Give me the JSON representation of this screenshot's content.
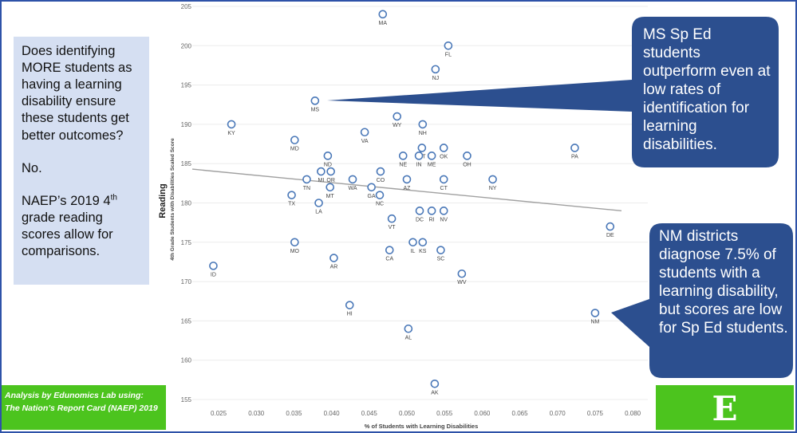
{
  "sidebar": {
    "question": "Does identifying MORE students as having a learning disability ensure these students get better outcomes?",
    "answer": "No.",
    "note_part1": "NAEP’s 2019 4",
    "note_sup": "th",
    "note_part2": " grade reading scores allow for comparisons."
  },
  "credit": {
    "line1": "Analysis by Edunomics Lab using:",
    "line2": "The Nation’s Report Card (NAEP) 2019"
  },
  "logo": {
    "letter": "E"
  },
  "callouts": {
    "ms": "MS Sp Ed students outperform even at low rates of identification for learning disabilities.",
    "nm": "NM districts diagnose 7.5% of students with a learning disability, but scores are low for Sp Ed students."
  },
  "colors": {
    "accent": "#2e52a8",
    "marker": "#4a78b8",
    "green": "#4cc41e",
    "panel": "#d5dff2"
  },
  "chart_data": {
    "type": "scatter",
    "xlabel": "% of Students with Learning Disabilities",
    "ylabel": "Reading",
    "ylabel_sub": "4th Grade Students with Disabilities Scaled Score",
    "xlim": [
      0.0215,
      0.082
    ],
    "ylim": [
      155,
      205
    ],
    "x_ticks": [
      "0.025",
      "0.030",
      "0.035",
      "0.040",
      "0.045",
      "0.050",
      "0.055",
      "0.060",
      "0.065",
      "0.070",
      "0.075",
      "0.080"
    ],
    "y_ticks": [
      "155",
      "160",
      "165",
      "170",
      "175",
      "180",
      "185",
      "190",
      "195",
      "200",
      "205"
    ],
    "trendline": [
      [
        0.0215,
        184.3
      ],
      [
        0.0785,
        179.0
      ]
    ],
    "points": [
      {
        "label": "MA",
        "x": 0.0468,
        "y": 204
      },
      {
        "label": "FL",
        "x": 0.0555,
        "y": 200
      },
      {
        "label": "NJ",
        "x": 0.0538,
        "y": 197
      },
      {
        "label": "MS",
        "x": 0.0378,
        "y": 193
      },
      {
        "label": "KY",
        "x": 0.0267,
        "y": 190
      },
      {
        "label": "WY",
        "x": 0.0487,
        "y": 191
      },
      {
        "label": "NH",
        "x": 0.0521,
        "y": 190
      },
      {
        "label": "VA",
        "x": 0.0444,
        "y": 189
      },
      {
        "label": "MD",
        "x": 0.0351,
        "y": 188
      },
      {
        "label": "PA",
        "x": 0.0723,
        "y": 187
      },
      {
        "label": "UT",
        "x": 0.052,
        "y": 187
      },
      {
        "label": "OK",
        "x": 0.0549,
        "y": 187
      },
      {
        "label": "ND",
        "x": 0.0395,
        "y": 186
      },
      {
        "label": "NE",
        "x": 0.0495,
        "y": 186
      },
      {
        "label": "IN",
        "x": 0.0516,
        "y": 186
      },
      {
        "label": "ME",
        "x": 0.0533,
        "y": 186
      },
      {
        "label": "OH",
        "x": 0.058,
        "y": 186
      },
      {
        "label": "MI",
        "x": 0.0386,
        "y": 184
      },
      {
        "label": "OR",
        "x": 0.0399,
        "y": 184
      },
      {
        "label": "CO",
        "x": 0.0465,
        "y": 184
      },
      {
        "label": "TN",
        "x": 0.0367,
        "y": 183
      },
      {
        "label": "WA",
        "x": 0.0428,
        "y": 183
      },
      {
        "label": "AZ",
        "x": 0.05,
        "y": 183
      },
      {
        "label": "CT",
        "x": 0.0549,
        "y": 183
      },
      {
        "label": "NY",
        "x": 0.0614,
        "y": 183
      },
      {
        "label": "MT",
        "x": 0.0398,
        "y": 182
      },
      {
        "label": "GA",
        "x": 0.0453,
        "y": 182
      },
      {
        "label": "TX",
        "x": 0.0347,
        "y": 181
      },
      {
        "label": "NC",
        "x": 0.0464,
        "y": 181
      },
      {
        "label": "LA",
        "x": 0.0383,
        "y": 180
      },
      {
        "label": "DC",
        "x": 0.0517,
        "y": 179
      },
      {
        "label": "RI",
        "x": 0.0533,
        "y": 179
      },
      {
        "label": "NV",
        "x": 0.0549,
        "y": 179
      },
      {
        "label": "VT",
        "x": 0.048,
        "y": 178
      },
      {
        "label": "DE",
        "x": 0.077,
        "y": 177
      },
      {
        "label": "MO",
        "x": 0.0351,
        "y": 175
      },
      {
        "label": "IL",
        "x": 0.0508,
        "y": 175
      },
      {
        "label": "KS",
        "x": 0.0521,
        "y": 175
      },
      {
        "label": "CA",
        "x": 0.0477,
        "y": 174
      },
      {
        "label": "SC",
        "x": 0.0545,
        "y": 174
      },
      {
        "label": "AR",
        "x": 0.0403,
        "y": 173
      },
      {
        "label": "ID",
        "x": 0.0243,
        "y": 172
      },
      {
        "label": "WV",
        "x": 0.0573,
        "y": 171
      },
      {
        "label": "HI",
        "x": 0.0424,
        "y": 167
      },
      {
        "label": "NM",
        "x": 0.075,
        "y": 166
      },
      {
        "label": "AL",
        "x": 0.0502,
        "y": 164
      },
      {
        "label": "AK",
        "x": 0.0537,
        "y": 157
      }
    ]
  }
}
